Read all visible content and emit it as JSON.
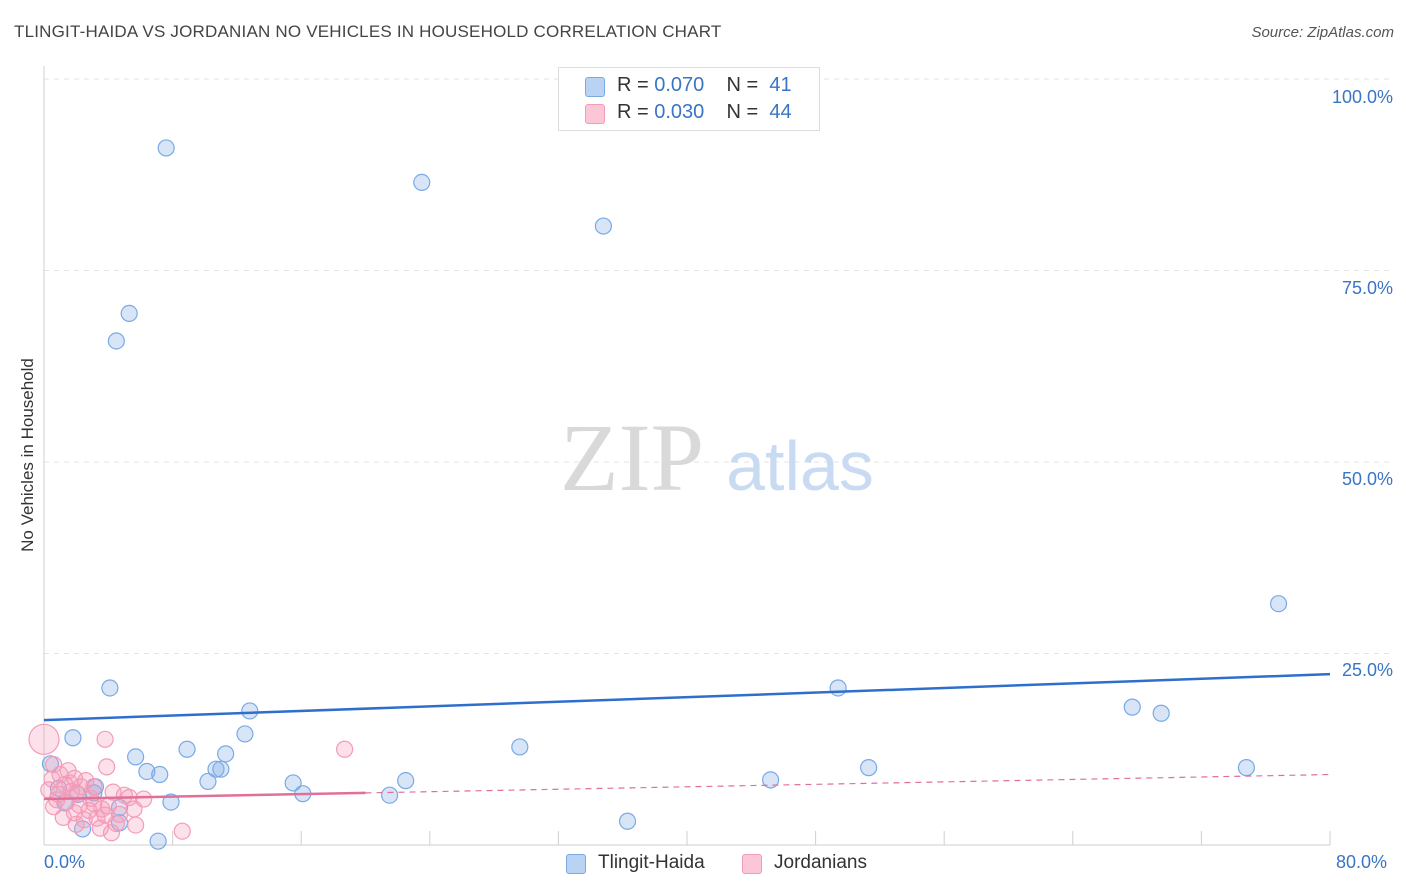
{
  "header": {
    "title": "TLINGIT-HAIDA VS JORDANIAN NO VEHICLES IN HOUSEHOLD CORRELATION CHART",
    "source": "Source: ZipAtlas.com"
  },
  "legend": {
    "rows": [
      {
        "r_label": "R = ",
        "r_value": "0.070",
        "n_label": "N = ",
        "n_value": "41"
      },
      {
        "r_label": "R = ",
        "r_value": "0.030",
        "n_label": "N = ",
        "n_value": "44"
      }
    ]
  },
  "bottom_legend": [
    "Tlingit-Haida",
    "Jordanians"
  ],
  "watermark": {
    "zip": "ZIP",
    "atlas": "atlas"
  },
  "chart_data": {
    "type": "scatter",
    "ylabel": "No Vehicles in Household",
    "xlim": [
      0,
      80
    ],
    "ylim": [
      0,
      100
    ],
    "x_tick_labels": [
      "0.0%",
      "80.0%"
    ],
    "y_tick_labels": [
      "100.0%",
      "75.0%",
      "50.0%",
      "25.0%"
    ],
    "y_ticks": [
      100,
      75,
      50,
      25
    ],
    "grid": true,
    "legend_position": "top-center",
    "series": [
      {
        "name": "Tlingit-Haida",
        "color": "#7aa9e6",
        "line_color": "#2f6fcc",
        "trend": {
          "x": [
            0,
            80
          ],
          "y": [
            16.3,
            22.3
          ],
          "dashed": false
        },
        "points": [
          [
            7.6,
            91.0
          ],
          [
            23.5,
            86.5
          ],
          [
            34.8,
            80.8
          ],
          [
            5.3,
            69.4
          ],
          [
            4.5,
            65.8
          ],
          [
            76.8,
            31.5
          ],
          [
            4.1,
            20.5
          ],
          [
            49.4,
            20.5
          ],
          [
            12.8,
            17.5
          ],
          [
            67.7,
            18.0
          ],
          [
            69.5,
            17.2
          ],
          [
            1.8,
            14.0
          ],
          [
            12.5,
            14.5
          ],
          [
            8.9,
            12.5
          ],
          [
            5.7,
            11.5
          ],
          [
            11.3,
            11.9
          ],
          [
            29.6,
            12.8
          ],
          [
            6.4,
            9.6
          ],
          [
            7.2,
            9.2
          ],
          [
            10.7,
            9.9
          ],
          [
            11.0,
            9.9
          ],
          [
            10.2,
            8.3
          ],
          [
            15.5,
            8.1
          ],
          [
            22.5,
            8.4
          ],
          [
            45.2,
            8.5
          ],
          [
            51.3,
            10.1
          ],
          [
            74.8,
            10.1
          ],
          [
            16.1,
            6.7
          ],
          [
            21.5,
            6.5
          ],
          [
            0.9,
            7.4
          ],
          [
            2.1,
            6.6
          ],
          [
            3.1,
            6.8
          ],
          [
            1.3,
            5.5
          ],
          [
            4.7,
            4.9
          ],
          [
            7.9,
            5.6
          ],
          [
            36.3,
            3.1
          ],
          [
            4.7,
            2.9
          ],
          [
            2.4,
            2.1
          ],
          [
            7.1,
            0.5
          ],
          [
            0.4,
            10.6
          ],
          [
            3.2,
            7.6
          ]
        ]
      },
      {
        "name": "Jordanians",
        "color": "#f49bb8",
        "line_color": "#e0709a",
        "trend": {
          "x": [
            0,
            20.0
          ],
          "y": [
            6.0,
            6.8
          ],
          "dashed": false
        },
        "trend_extension": {
          "x": [
            20.0,
            80
          ],
          "y": [
            6.8,
            9.2
          ],
          "dashed": true
        },
        "points": [
          [
            0.0,
            13.8
          ],
          [
            3.8,
            13.8
          ],
          [
            18.7,
            12.5
          ],
          [
            0.6,
            10.5
          ],
          [
            3.9,
            10.2
          ],
          [
            1.5,
            9.7
          ],
          [
            1.0,
            9.2
          ],
          [
            1.9,
            8.7
          ],
          [
            0.5,
            8.6
          ],
          [
            2.6,
            8.4
          ],
          [
            1.3,
            7.9
          ],
          [
            2.3,
            7.6
          ],
          [
            3.1,
            7.6
          ],
          [
            0.3,
            7.2
          ],
          [
            1.7,
            7.0
          ],
          [
            2.0,
            6.8
          ],
          [
            4.3,
            6.9
          ],
          [
            5.0,
            6.5
          ],
          [
            5.3,
            6.2
          ],
          [
            6.2,
            6.0
          ],
          [
            0.8,
            5.9
          ],
          [
            1.4,
            5.6
          ],
          [
            2.2,
            5.2
          ],
          [
            3.1,
            5.4
          ],
          [
            4.0,
            5.1
          ],
          [
            5.6,
            4.7
          ],
          [
            0.6,
            5.0
          ],
          [
            1.9,
            4.2
          ],
          [
            2.8,
            4.5
          ],
          [
            3.8,
            3.9
          ],
          [
            4.7,
            4.0
          ],
          [
            1.2,
            3.6
          ],
          [
            2.5,
            3.3
          ],
          [
            3.3,
            3.5
          ],
          [
            4.5,
            2.8
          ],
          [
            5.7,
            2.6
          ],
          [
            2.0,
            2.7
          ],
          [
            3.5,
            2.2
          ],
          [
            8.6,
            1.8
          ],
          [
            4.2,
            1.6
          ],
          [
            0.9,
            6.6
          ],
          [
            1.6,
            8.1
          ],
          [
            2.9,
            6.1
          ],
          [
            3.6,
            4.7
          ]
        ]
      }
    ]
  }
}
